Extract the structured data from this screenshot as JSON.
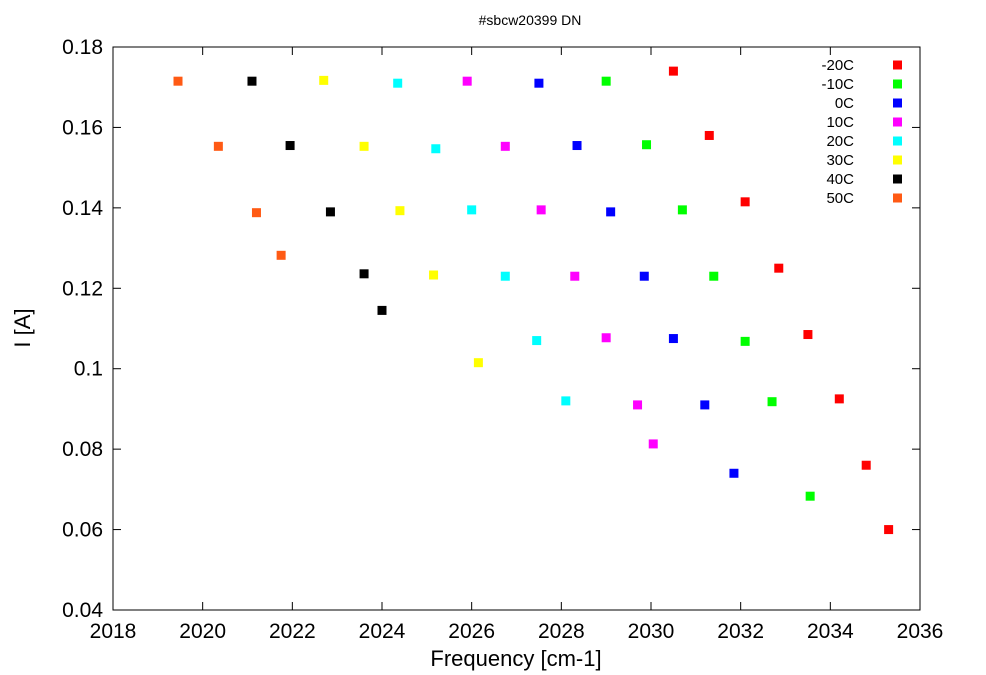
{
  "chart_data": {
    "type": "scatter",
    "title": "#sbcw20399 DN",
    "xlabel": "Frequency [cm-1]",
    "ylabel": "I [A]",
    "xlim": [
      2018,
      2036
    ],
    "ylim": [
      0.04,
      0.18
    ],
    "xticks": [
      "2018",
      "2020",
      "2022",
      "2024",
      "2026",
      "2028",
      "2030",
      "2032",
      "2034",
      "2036"
    ],
    "yticks": [
      "0.04",
      "0.06",
      "0.08",
      "0.1",
      "0.12",
      "0.14",
      "0.16",
      "0.18"
    ],
    "grid": false,
    "legend_position": "top-right",
    "series": [
      {
        "name": "-20C",
        "color": "#ff0000",
        "points": [
          [
            2030.5,
            0.174
          ],
          [
            2031.3,
            0.158
          ],
          [
            2032.1,
            0.1415
          ],
          [
            2032.85,
            0.125
          ],
          [
            2033.5,
            0.1085
          ],
          [
            2034.2,
            0.0925
          ],
          [
            2034.8,
            0.076
          ],
          [
            2035.3,
            0.06
          ]
        ]
      },
      {
        "name": "-10C",
        "color": "#00ff00",
        "points": [
          [
            2029.0,
            0.1715
          ],
          [
            2029.9,
            0.1557
          ],
          [
            2030.7,
            0.1395
          ],
          [
            2031.4,
            0.123
          ],
          [
            2032.1,
            0.1068
          ],
          [
            2032.7,
            0.0918
          ],
          [
            2033.55,
            0.0683
          ]
        ]
      },
      {
        "name": "0C",
        "color": "#0000ff",
        "points": [
          [
            2027.5,
            0.171
          ],
          [
            2028.35,
            0.1555
          ],
          [
            2029.1,
            0.139
          ],
          [
            2029.85,
            0.123
          ],
          [
            2030.5,
            0.1075
          ],
          [
            2031.2,
            0.091
          ],
          [
            2031.85,
            0.074
          ]
        ]
      },
      {
        "name": "10C",
        "color": "#ff00ff",
        "points": [
          [
            2025.9,
            0.1715
          ],
          [
            2026.75,
            0.1553
          ],
          [
            2027.55,
            0.1395
          ],
          [
            2028.3,
            0.123
          ],
          [
            2029.0,
            0.1077
          ],
          [
            2029.7,
            0.091
          ],
          [
            2030.05,
            0.0813
          ]
        ]
      },
      {
        "name": "20C",
        "color": "#00ffff",
        "points": [
          [
            2024.35,
            0.171
          ],
          [
            2025.2,
            0.1547
          ],
          [
            2026.0,
            0.1395
          ],
          [
            2026.75,
            0.123
          ],
          [
            2027.45,
            0.107
          ],
          [
            2028.1,
            0.092
          ]
        ]
      },
      {
        "name": "30C",
        "color": "#ffff00",
        "points": [
          [
            2022.7,
            0.1717
          ],
          [
            2023.6,
            0.1553
          ],
          [
            2024.4,
            0.1393
          ],
          [
            2025.15,
            0.1233
          ],
          [
            2026.15,
            0.1015
          ]
        ]
      },
      {
        "name": "40C",
        "color": "#000000",
        "points": [
          [
            2021.1,
            0.1715
          ],
          [
            2021.95,
            0.1555
          ],
          [
            2022.85,
            0.139
          ],
          [
            2023.6,
            0.1236
          ],
          [
            2024.0,
            0.1145
          ]
        ]
      },
      {
        "name": "50C",
        "color": "#ff5a14",
        "points": [
          [
            2019.45,
            0.1715
          ],
          [
            2020.35,
            0.1553
          ],
          [
            2021.2,
            0.1388
          ],
          [
            2021.75,
            0.1282
          ]
        ]
      }
    ]
  }
}
